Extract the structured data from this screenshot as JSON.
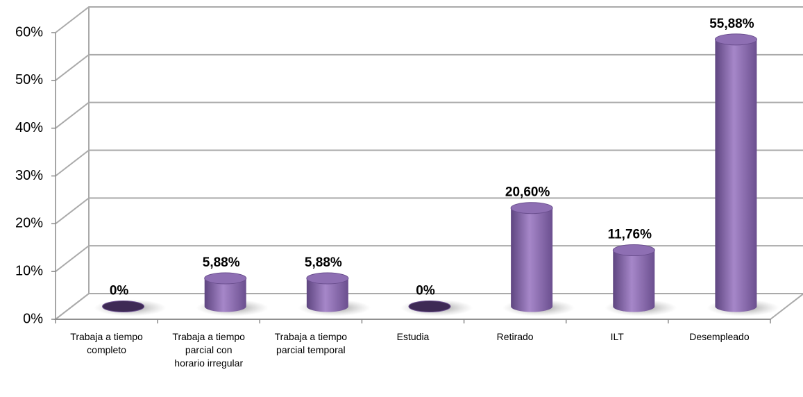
{
  "chart_data": {
    "type": "bar3d",
    "categories": [
      "Trabaja a tiempo completo",
      "Trabaja a tiempo parcial con horario irregular",
      "Trabaja a tiempo parcial temporal",
      "Estudia",
      "Retirado",
      "ILT",
      "Desempleado"
    ],
    "values": [
      0,
      5.88,
      5.88,
      0,
      20.6,
      11.76,
      55.88
    ],
    "value_labels": [
      "0%",
      "5,88%",
      "5,88%",
      "0%",
      "20,60%",
      "11,76%",
      "55,88%"
    ],
    "color": "#8e6fb3",
    "ylim": [
      0,
      60
    ],
    "yticks": [
      {
        "value": 0,
        "label": "0%"
      },
      {
        "value": 10,
        "label": "10%"
      },
      {
        "value": 20,
        "label": "20%"
      },
      {
        "value": 30,
        "label": "30%"
      },
      {
        "value": 40,
        "label": "40%"
      },
      {
        "value": 50,
        "label": "50%"
      },
      {
        "value": 60,
        "label": "60%"
      }
    ],
    "grid": true
  }
}
